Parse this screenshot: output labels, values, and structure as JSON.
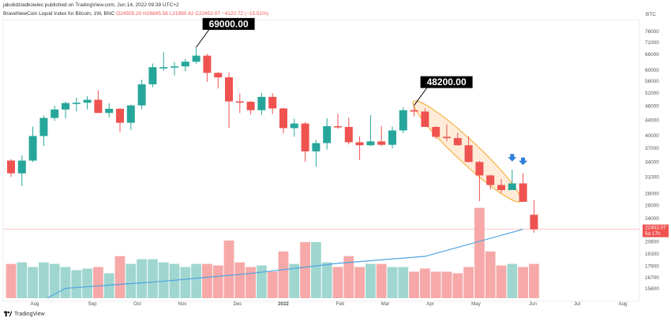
{
  "header": {
    "publisher": "jakubdziadkowiec published on TradingView.com, Jun 14, 2022 09:39 UTC+2",
    "symbol": "BraveNewCoin Liquid Index for Bitcoin, 1W, BNC",
    "ohlc_text": "O24555.20 H26845.56 L21990.42 C22452.07 −4122.72 (−15.51%)",
    "currency": "BTC"
  },
  "footer": {
    "brand": "TradingView"
  },
  "colors": {
    "up": "#26a69a",
    "down": "#ef5350",
    "ma": "#4da3e0",
    "callout_bg": "#000000",
    "ellipse": "#f5a623",
    "arrow": "#2e7fdb"
  },
  "chart_data": {
    "type": "candlestick",
    "title": "BraveNewCoin Liquid Index for Bitcoin, 1W, BNC",
    "y_scale": "log",
    "ylim": [
      15000,
      81000
    ],
    "y_ticks": [
      76000,
      71000,
      66000,
      60000,
      56000,
      52000,
      48000,
      44000,
      40000,
      37000,
      34000,
      31000,
      28000,
      26000,
      24000,
      20800,
      19300,
      17900,
      16700,
      15600
    ],
    "x_tick_labels": [
      "Aug",
      "Sep",
      "Oct",
      "Nov",
      "Dec",
      "2022",
      "Feb",
      "Mar",
      "Apr",
      "May",
      "Jun",
      "Jul",
      "Aug"
    ],
    "price_label": {
      "value": "22452.07",
      "countdown": "5d 17h"
    },
    "candles": [
      {
        "date": "2021-07-12",
        "o": 34300,
        "h": 34600,
        "l": 31000,
        "c": 31700
      },
      {
        "date": "2021-07-19",
        "o": 31700,
        "h": 35400,
        "l": 29300,
        "c": 34300
      },
      {
        "date": "2021-07-26",
        "o": 34300,
        "h": 42300,
        "l": 34000,
        "c": 39900
      },
      {
        "date": "2021-08-02",
        "o": 39900,
        "h": 45300,
        "l": 37500,
        "c": 44600
      },
      {
        "date": "2021-08-09",
        "o": 44600,
        "h": 48100,
        "l": 43800,
        "c": 47000
      },
      {
        "date": "2021-08-16",
        "o": 47000,
        "h": 49400,
        "l": 44500,
        "c": 48900
      },
      {
        "date": "2021-08-23",
        "o": 48900,
        "h": 50500,
        "l": 46500,
        "c": 49000
      },
      {
        "date": "2021-08-30",
        "o": 49000,
        "h": 51000,
        "l": 47000,
        "c": 49900
      },
      {
        "date": "2021-09-06",
        "o": 49900,
        "h": 52900,
        "l": 46000,
        "c": 46000
      },
      {
        "date": "2021-09-13",
        "o": 46000,
        "h": 48800,
        "l": 44800,
        "c": 47200
      },
      {
        "date": "2021-09-20",
        "o": 47200,
        "h": 47400,
        "l": 40800,
        "c": 43300
      },
      {
        "date": "2021-09-27",
        "o": 43300,
        "h": 48400,
        "l": 41400,
        "c": 48200
      },
      {
        "date": "2021-10-04",
        "o": 48200,
        "h": 56500,
        "l": 47100,
        "c": 54900
      },
      {
        "date": "2021-10-11",
        "o": 54900,
        "h": 62400,
        "l": 53900,
        "c": 61000
      },
      {
        "date": "2021-10-18",
        "o": 61000,
        "h": 67000,
        "l": 59700,
        "c": 61000
      },
      {
        "date": "2021-10-25",
        "o": 61000,
        "h": 63000,
        "l": 58000,
        "c": 61300
      },
      {
        "date": "2021-11-01",
        "o": 61300,
        "h": 64200,
        "l": 59500,
        "c": 63100
      },
      {
        "date": "2021-11-08",
        "o": 63100,
        "h": 69000,
        "l": 62300,
        "c": 65500
      },
      {
        "date": "2021-11-15",
        "o": 65500,
        "h": 66200,
        "l": 55700,
        "c": 58900
      },
      {
        "date": "2021-11-22",
        "o": 58900,
        "h": 59200,
        "l": 53500,
        "c": 57300
      },
      {
        "date": "2021-11-29",
        "o": 57300,
        "h": 59000,
        "l": 42000,
        "c": 49400
      },
      {
        "date": "2021-12-06",
        "o": 49400,
        "h": 51900,
        "l": 46000,
        "c": 49300
      },
      {
        "date": "2021-12-13",
        "o": 49300,
        "h": 49500,
        "l": 45600,
        "c": 46800
      },
      {
        "date": "2021-12-20",
        "o": 46800,
        "h": 52000,
        "l": 45500,
        "c": 50800
      },
      {
        "date": "2021-12-27",
        "o": 50800,
        "h": 52000,
        "l": 45700,
        "c": 47300
      },
      {
        "date": "2022-01-03",
        "o": 47300,
        "h": 47500,
        "l": 40500,
        "c": 41900
      },
      {
        "date": "2022-01-10",
        "o": 41900,
        "h": 44400,
        "l": 39700,
        "c": 43100
      },
      {
        "date": "2022-01-17",
        "o": 43100,
        "h": 43500,
        "l": 34000,
        "c": 36300
      },
      {
        "date": "2022-01-24",
        "o": 36300,
        "h": 38900,
        "l": 33000,
        "c": 38200
      },
      {
        "date": "2022-01-31",
        "o": 38200,
        "h": 44500,
        "l": 36700,
        "c": 42400
      },
      {
        "date": "2022-02-07",
        "o": 42400,
        "h": 45800,
        "l": 41700,
        "c": 42200
      },
      {
        "date": "2022-02-14",
        "o": 42200,
        "h": 44700,
        "l": 37900,
        "c": 38400
      },
      {
        "date": "2022-02-21",
        "o": 38400,
        "h": 39800,
        "l": 34400,
        "c": 37700
      },
      {
        "date": "2022-02-28",
        "o": 37700,
        "h": 45400,
        "l": 37500,
        "c": 38600
      },
      {
        "date": "2022-03-07",
        "o": 38600,
        "h": 42500,
        "l": 37500,
        "c": 37800
      },
      {
        "date": "2022-03-14",
        "o": 37800,
        "h": 42300,
        "l": 37000,
        "c": 41300
      },
      {
        "date": "2022-03-21",
        "o": 41300,
        "h": 47600,
        "l": 40600,
        "c": 46800
      },
      {
        "date": "2022-03-28",
        "o": 46800,
        "h": 48200,
        "l": 45000,
        "c": 46400
      },
      {
        "date": "2022-04-04",
        "o": 46400,
        "h": 47300,
        "l": 42200,
        "c": 42200
      },
      {
        "date": "2022-04-11",
        "o": 42200,
        "h": 42400,
        "l": 39200,
        "c": 39700
      },
      {
        "date": "2022-04-18",
        "o": 39700,
        "h": 42900,
        "l": 38600,
        "c": 39400
      },
      {
        "date": "2022-04-25",
        "o": 39400,
        "h": 40700,
        "l": 37600,
        "c": 37700
      },
      {
        "date": "2022-05-02",
        "o": 37700,
        "h": 39800,
        "l": 33900,
        "c": 34000
      },
      {
        "date": "2022-05-09",
        "o": 34000,
        "h": 34200,
        "l": 26700,
        "c": 31300
      },
      {
        "date": "2022-05-16",
        "o": 31300,
        "h": 31400,
        "l": 28700,
        "c": 29500
      },
      {
        "date": "2022-05-23",
        "o": 29500,
        "h": 30600,
        "l": 28100,
        "c": 28600
      },
      {
        "date": "2022-05-30",
        "o": 28600,
        "h": 32400,
        "l": 29000,
        "c": 29800
      },
      {
        "date": "2022-06-06",
        "o": 29800,
        "h": 31700,
        "l": 26600,
        "c": 26600
      },
      {
        "date": "2022-06-13",
        "o": 24555.2,
        "h": 26845.56,
        "l": 21990.42,
        "c": 22452.07
      }
    ],
    "volume_relative": [
      0.22,
      0.23,
      0.2,
      0.23,
      0.22,
      0.2,
      0.18,
      0.19,
      0.2,
      0.16,
      0.27,
      0.22,
      0.25,
      0.25,
      0.23,
      0.22,
      0.2,
      0.22,
      0.22,
      0.21,
      0.37,
      0.23,
      0.2,
      0.21,
      0.17,
      0.3,
      0.22,
      0.36,
      0.36,
      0.23,
      0.2,
      0.27,
      0.2,
      0.22,
      0.22,
      0.2,
      0.2,
      0.17,
      0.19,
      0.17,
      0.17,
      0.16,
      0.2,
      0.58,
      0.3,
      0.21,
      0.22,
      0.2,
      0.22
    ],
    "moving_average": {
      "description": "blue line",
      "points": [
        [
          5,
          15600
        ],
        [
          14,
          16300
        ],
        [
          22,
          17100
        ],
        [
          30,
          18200
        ],
        [
          38,
          19000
        ],
        [
          47,
          22452
        ]
      ]
    },
    "annotations": [
      {
        "text": "69000.00",
        "candle": 17,
        "price": 69000
      },
      {
        "text": "48200.00",
        "candle": 37,
        "price": 48200
      }
    ],
    "highlight_ellipse": {
      "from_candle": 38,
      "to_candle": 46
    },
    "down_arrows": [
      {
        "candle": 46
      },
      {
        "candle": 47
      }
    ]
  }
}
